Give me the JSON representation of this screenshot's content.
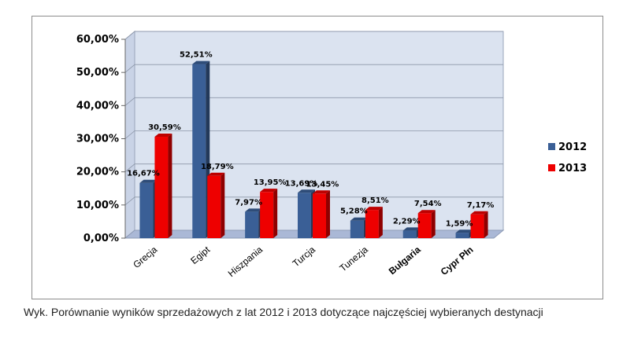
{
  "caption": "Wyk. Porównanie wyników sprzedażowych z lat 2012 i 2013 dotyczące najczęściej wybieranych destynacji",
  "colors": {
    "series_2012": "#3a5f96",
    "series_2013": "#ee0000",
    "plot_background": "#dbe3f0",
    "floor": "#aab8d6"
  },
  "chart_data": {
    "type": "bar",
    "categories": [
      "Grecja",
      "Egipt",
      "Hiszpania",
      "Turcja",
      "Tunezja",
      "Bułgaria",
      "Cypr Płn"
    ],
    "series": [
      {
        "name": "2012",
        "values": [
          16.67,
          52.51,
          7.97,
          13.69,
          5.28,
          2.29,
          1.59
        ],
        "labels": [
          "16,67%",
          "52,51%",
          "7,97%",
          "13,69%",
          "5,28%",
          "2,29%",
          "1,59%"
        ]
      },
      {
        "name": "2013",
        "values": [
          30.59,
          18.79,
          13.95,
          13.45,
          8.51,
          7.54,
          7.17
        ],
        "labels": [
          "30,59%",
          "18,79%",
          "13,95%",
          "13,45%",
          "8,51%",
          "7,54%",
          "7,17%"
        ]
      }
    ],
    "ylim": [
      0,
      60
    ],
    "yticks": [
      "0,00%",
      "10,00%",
      "20,00%",
      "30,00%",
      "40,00%",
      "50,00%",
      "60,00%"
    ],
    "bold_categories": [
      "Bułgaria",
      "Cypr Płn"
    ],
    "grid": true,
    "legend": "right",
    "style": "3d-clustered-bar"
  }
}
